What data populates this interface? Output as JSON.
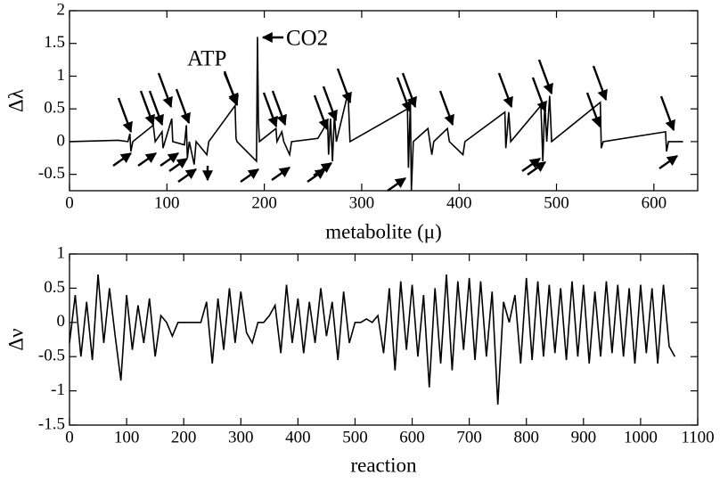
{
  "chart_data": [
    {
      "type": "line",
      "xlabel": "metabolite (μ)",
      "ylabel": "Δλ",
      "annotations": [
        "ATP",
        "CO2"
      ],
      "xlim": [
        0,
        645
      ],
      "ylim": [
        -0.75,
        2
      ],
      "xticks": [
        0,
        100,
        200,
        300,
        400,
        500,
        600
      ],
      "yticks": [
        -0.5,
        0,
        0.5,
        1,
        1.5,
        2
      ],
      "series": [
        {
          "color": "#000000",
          "x": [
            0,
            50,
            60,
            62,
            63,
            65,
            86,
            88,
            95,
            96,
            98,
            105,
            106,
            118,
            120,
            121,
            123,
            128,
            130,
            141,
            143,
            170,
            171,
            172,
            192,
            193,
            194,
            195,
            212,
            213,
            218,
            220,
            226,
            228,
            255,
            265,
            266,
            268,
            270,
            272,
            274,
            286,
            288,
            347,
            348,
            350,
            351,
            353,
            368,
            372,
            374,
            388,
            390,
            404,
            406,
            447,
            448,
            451,
            453,
            484,
            486,
            488,
            490,
            493,
            495,
            545,
            546,
            548,
            612,
            613,
            615,
            630
          ],
          "values": [
            0,
            0.02,
            0,
            0.12,
            -0.15,
            0,
            0.25,
            0,
            0.15,
            -0.1,
            0,
            0.35,
            0,
            -0.05,
            0.25,
            -0.25,
            0,
            -0.35,
            0,
            -0.2,
            0,
            0.55,
            0.05,
            0,
            -0.3,
            1.6,
            0.3,
            0,
            0.2,
            0,
            0.15,
            0,
            -0.2,
            0,
            0.05,
            0.3,
            -0.2,
            0.35,
            -0.3,
            0.4,
            0,
            0.75,
            0,
            0.5,
            -0.4,
            0.6,
            -0.75,
            0,
            0.2,
            -0.2,
            0,
            0.2,
            0,
            -0.2,
            0,
            0.45,
            -0.1,
            0.45,
            0,
            0.55,
            -0.3,
            0.6,
            0,
            0.7,
            0,
            0.6,
            -0.1,
            0,
            0.15,
            -0.15,
            0,
            0
          ]
        }
      ]
    },
    {
      "type": "line",
      "xlabel": "reaction",
      "ylabel": "Δν",
      "xlim": [
        0,
        1100
      ],
      "ylim": [
        -1.5,
        1
      ],
      "xticks": [
        0,
        100,
        200,
        300,
        400,
        500,
        600,
        700,
        800,
        900,
        1000,
        1100
      ],
      "yticks": [
        -1.5,
        -1,
        -0.5,
        0,
        0.5,
        1
      ],
      "series": [
        {
          "color": "#000000",
          "x": [
            0,
            10,
            20,
            30,
            40,
            50,
            60,
            70,
            80,
            90,
            100,
            110,
            120,
            130,
            140,
            150,
            160,
            170,
            180,
            190,
            200,
            210,
            220,
            230,
            240,
            250,
            260,
            270,
            280,
            290,
            300,
            310,
            320,
            330,
            340,
            350,
            360,
            370,
            380,
            390,
            400,
            410,
            420,
            430,
            440,
            450,
            460,
            470,
            480,
            490,
            500,
            510,
            520,
            530,
            540,
            550,
            560,
            570,
            580,
            590,
            600,
            610,
            620,
            630,
            640,
            650,
            660,
            670,
            680,
            690,
            700,
            710,
            720,
            730,
            740,
            750,
            760,
            770,
            780,
            790,
            800,
            810,
            820,
            830,
            840,
            850,
            860,
            870,
            880,
            890,
            900,
            910,
            920,
            930,
            940,
            950,
            960,
            970,
            980,
            990,
            1000,
            1010,
            1020,
            1030,
            1040,
            1050,
            1060
          ],
          "values": [
            -0.3,
            0.4,
            -0.5,
            0.3,
            -0.55,
            0.7,
            -0.3,
            0.5,
            -0.2,
            -0.85,
            0.4,
            -0.4,
            0.25,
            -0.3,
            0.35,
            -0.5,
            0.1,
            0,
            -0.2,
            0,
            0,
            0,
            0,
            0,
            0.3,
            -0.6,
            0.35,
            -0.4,
            0.5,
            -0.3,
            0.45,
            -0.15,
            -0.3,
            0,
            0,
            0.1,
            0.25,
            -0.45,
            0.55,
            -0.3,
            0.35,
            -0.45,
            0.3,
            -0.3,
            0.5,
            -0.2,
            0.3,
            -0.55,
            0.45,
            -0.3,
            0,
            0,
            0.05,
            0,
            0.1,
            -0.45,
            0.5,
            -0.7,
            0.6,
            -0.4,
            0.55,
            -0.5,
            0.4,
            -0.95,
            0.5,
            -0.6,
            0.7,
            -0.7,
            0.6,
            -0.4,
            0.65,
            -0.55,
            0.6,
            -0.5,
            0.45,
            -1.2,
            0.3,
            0,
            0.4,
            -0.6,
            0.65,
            -0.55,
            0.6,
            -0.5,
            0.55,
            -0.45,
            0.5,
            -0.55,
            0.6,
            -0.5,
            0.55,
            -0.6,
            0.45,
            -0.5,
            0.6,
            -0.45,
            0.55,
            -0.5,
            0.5,
            -0.6,
            0.55,
            -0.45,
            0.5,
            -0.6,
            0.55,
            -0.35,
            -0.5
          ]
        }
      ]
    }
  ]
}
